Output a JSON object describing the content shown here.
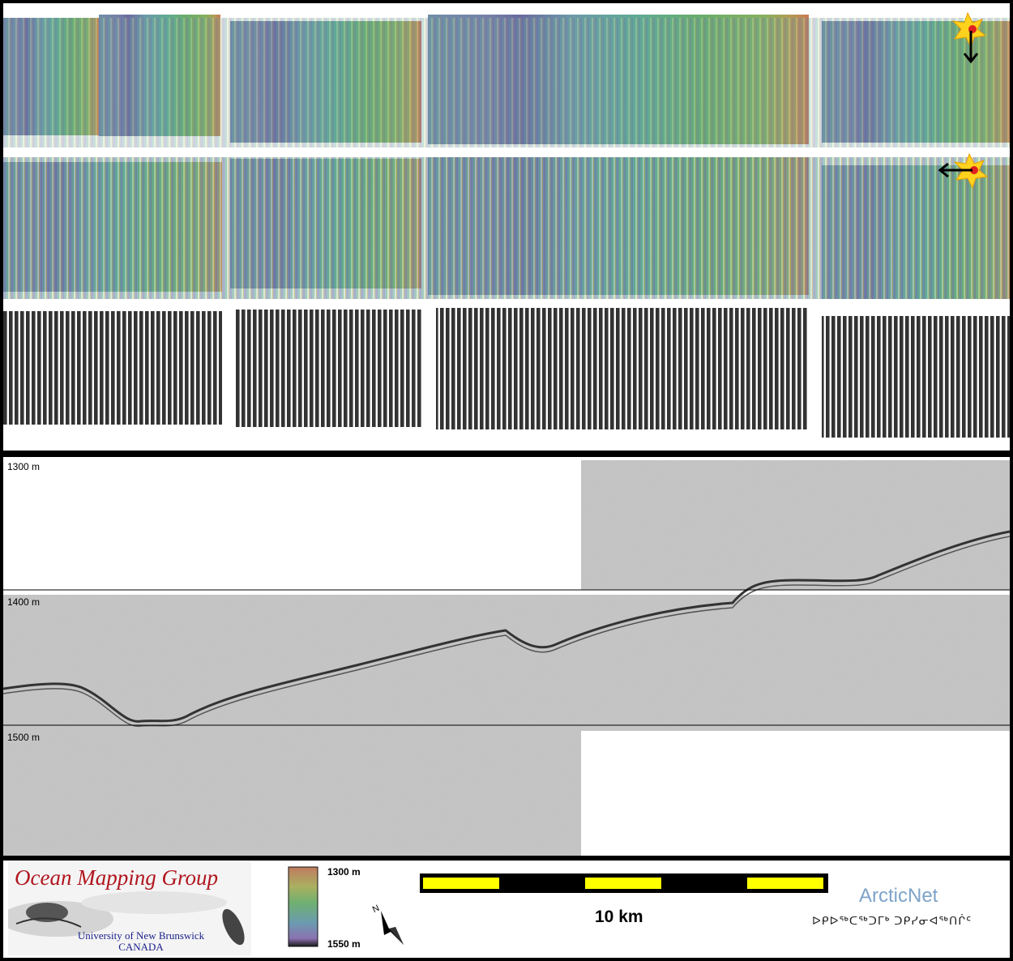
{
  "depth_labels": [
    "1300 m",
    "1400 m",
    "1500 m"
  ],
  "logo": {
    "title": "Ocean Mapping Group",
    "university": "University of New Brunswick",
    "country": "CANADA"
  },
  "colorbar": {
    "top_label": "1300 m",
    "bottom_label": "1550 m"
  },
  "north_label": "N",
  "scale_bar": {
    "label": "10 km",
    "colors": [
      "#ffff00",
      "#000000"
    ]
  },
  "arcticnet": {
    "name": "ArcticNet",
    "syllabics": "ᐅᑭᐅᖅᑕᖅᑐᒥᒃ ᑐᑭᓯᓂᐊᖅᑎᒌᑦ"
  },
  "colors": {
    "title_red": "#b0161e",
    "subtitle_blue": "#1a1f8a",
    "arctic_blue": "#7ea3c8"
  }
}
